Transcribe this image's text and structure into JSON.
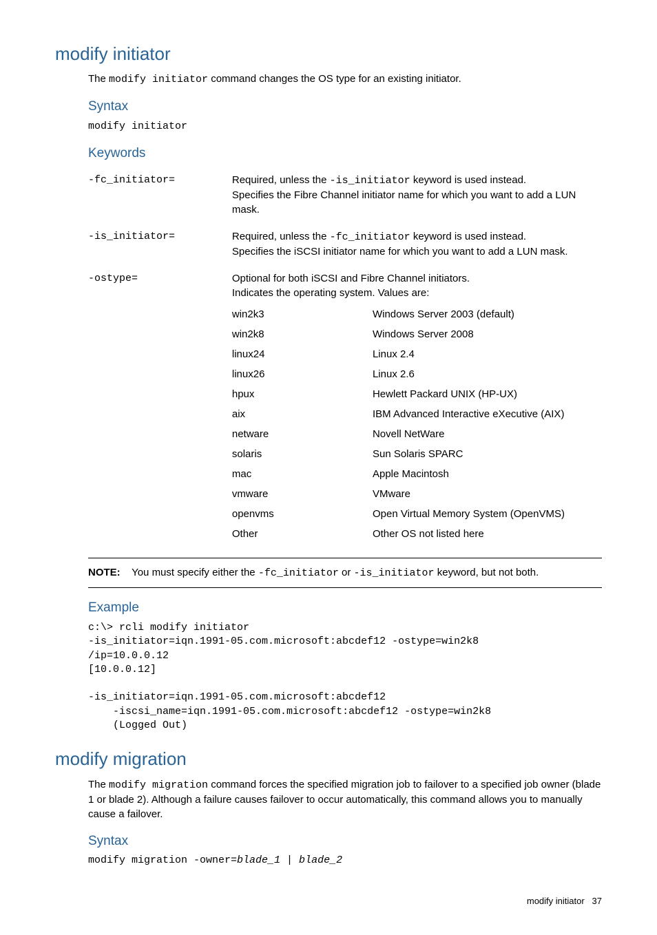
{
  "section1": {
    "title": "modify initiator",
    "intro_pre": "The ",
    "intro_cmd": "modify initiator",
    "intro_post": " command changes the OS type for an existing initiator.",
    "syntax_heading": "Syntax",
    "syntax_cmd": "modify initiator",
    "keywords_heading": "Keywords",
    "kw": [
      {
        "name": "-fc_initiator=",
        "desc_pre": "Required, unless the ",
        "desc_code": "-is_initiator",
        "desc_mid": " keyword is used instead.",
        "desc_line2": "Specifies the Fibre Channel initiator name for which you want to add a LUN mask."
      },
      {
        "name": "-is_initiator=",
        "desc_pre": "Required, unless the ",
        "desc_code": "-fc_initiator",
        "desc_mid": " keyword is used instead.",
        "desc_line2": "Specifies the iSCSI initiator name for which you want to add a LUN mask."
      },
      {
        "name": "-ostype=",
        "desc_line1": "Optional for both iSCSI and Fibre Channel initiators.",
        "desc_line2": "Indicates the operating system. Values are:"
      }
    ],
    "ostypes": [
      {
        "k": "win2k3",
        "v": "Windows Server 2003 (default)"
      },
      {
        "k": "win2k8",
        "v": "Windows Server 2008"
      },
      {
        "k": "linux24",
        "v": "Linux 2.4"
      },
      {
        "k": "linux26",
        "v": "Linux 2.6"
      },
      {
        "k": "hpux",
        "v": "Hewlett Packard UNIX (HP-UX)"
      },
      {
        "k": "aix",
        "v": "IBM Advanced Interactive eXecutive (AIX)"
      },
      {
        "k": "netware",
        "v": "Novell NetWare"
      },
      {
        "k": "solaris",
        "v": "Sun Solaris SPARC"
      },
      {
        "k": "mac",
        "v": "Apple Macintosh"
      },
      {
        "k": "vmware",
        "v": "VMware"
      },
      {
        "k": "openvms",
        "v": "Open Virtual Memory System (OpenVMS)"
      },
      {
        "k": "Other",
        "v": "Other OS not listed here"
      }
    ],
    "note_label": "NOTE:",
    "note_pre": " You must specify either the ",
    "note_code1": "-fc_initiator",
    "note_mid": " or ",
    "note_code2": "-is_initiator",
    "note_post": " keyword, but not both.",
    "example_heading": "Example",
    "example_prompt": "c:\\> ",
    "example_bold": "rcli modify initiator\n-is_initiator=iqn.1991-05.com.microsoft:abcdef12 -ostype=win2k8\n/ip=10.0.0.12",
    "example_rest": "\n[10.0.0.12]\n\n-is_initiator=iqn.1991-05.com.microsoft:abcdef12\n    -iscsi_name=iqn.1991-05.com.microsoft:abcdef12 -ostype=win2k8\n    (Logged Out)"
  },
  "section2": {
    "title": "modify migration",
    "intro_pre": "The ",
    "intro_cmd": "modify migration",
    "intro_post": " command forces the specified migration job to failover to a specified job owner (blade 1 or blade 2). Although a failure causes failover to occur automatically, this command allows you to manually cause a failover.",
    "syntax_heading": "Syntax",
    "syntax_cmd_pre": "modify migration -owner=",
    "syntax_cmd_italic": "blade_1 | blade_2"
  },
  "footer": {
    "title": "modify initiator",
    "page": "37"
  }
}
